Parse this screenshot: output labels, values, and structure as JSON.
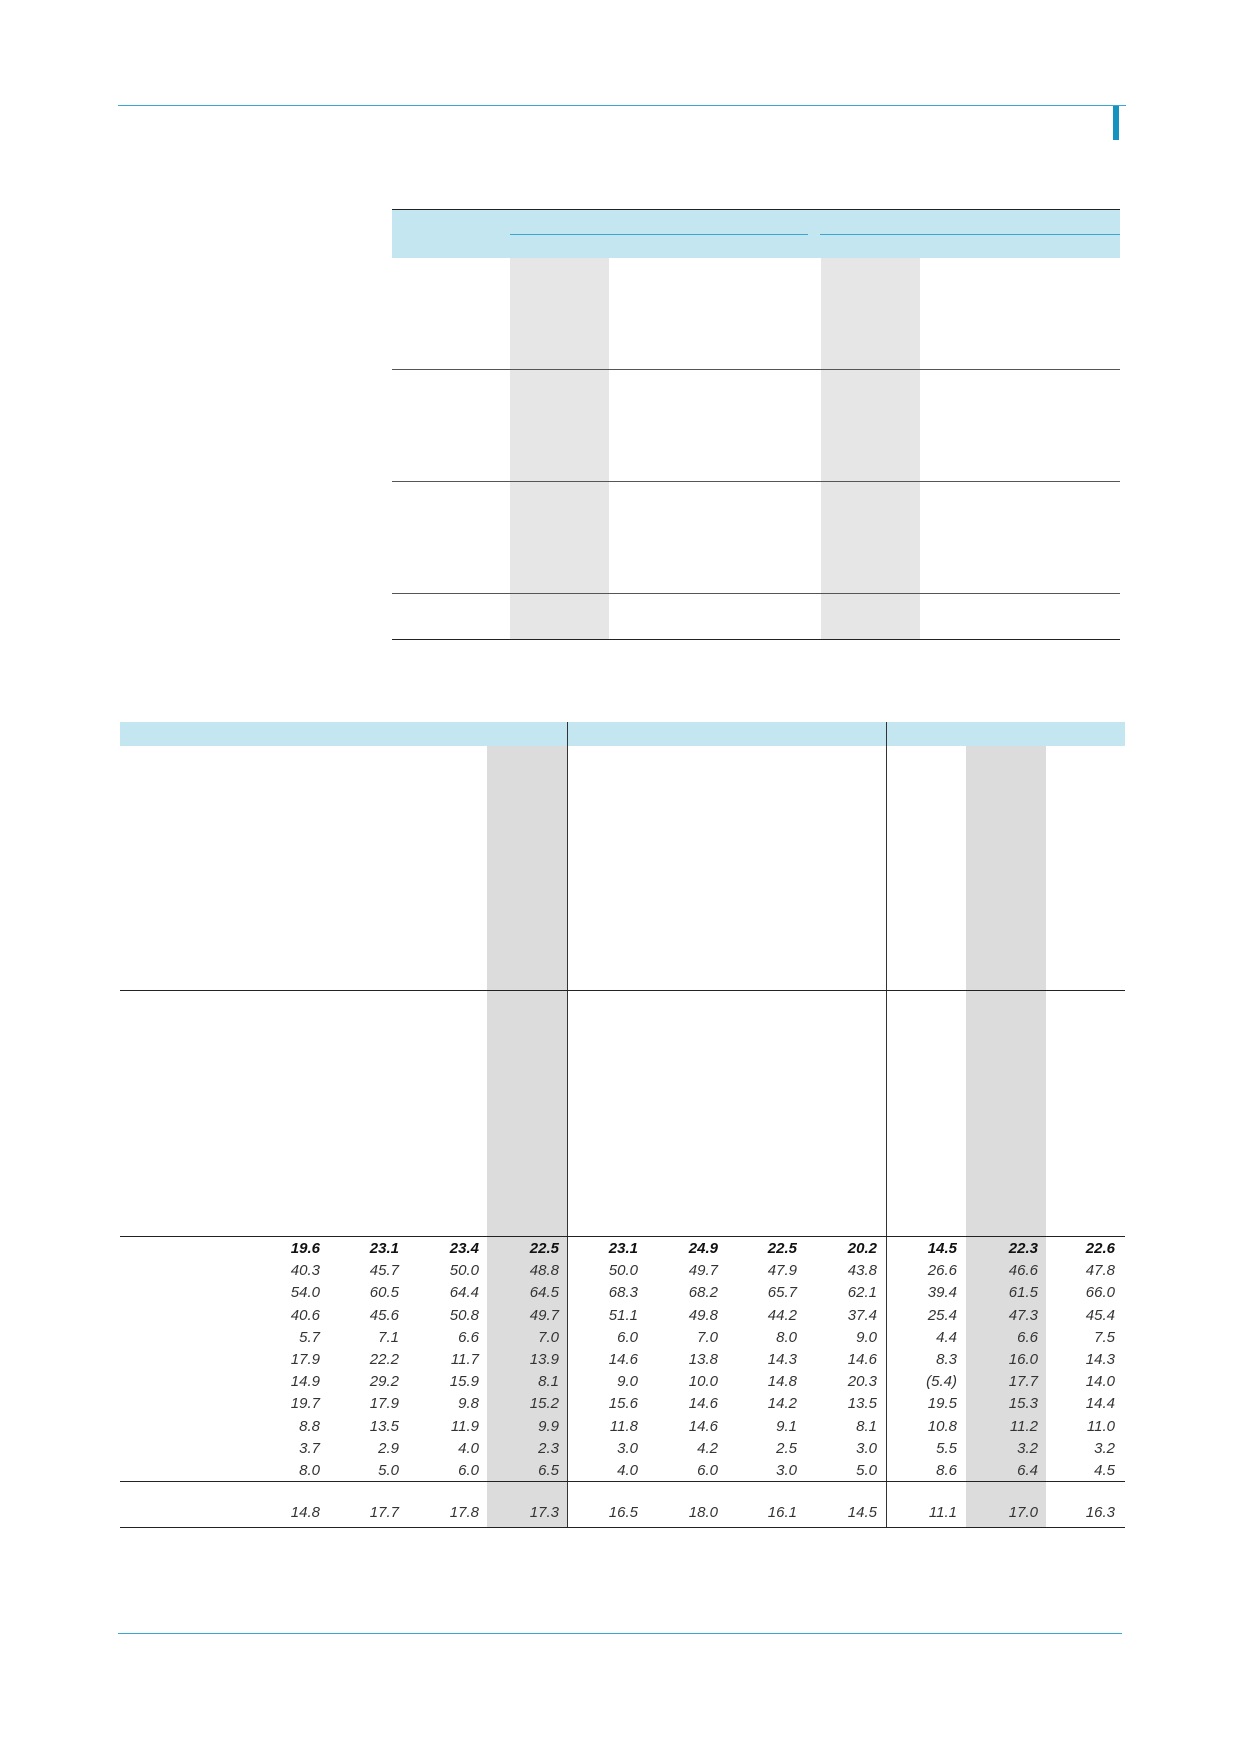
{
  "table": {
    "rows": [
      {
        "bold": true,
        "values": [
          "19.6",
          "23.1",
          "23.4",
          "22.5",
          "23.1",
          "24.9",
          "22.5",
          "20.2",
          "14.5",
          "22.3",
          "22.6"
        ]
      },
      {
        "bold": false,
        "values": [
          "40.3",
          "45.7",
          "50.0",
          "48.8",
          "50.0",
          "49.7",
          "47.9",
          "43.8",
          "26.6",
          "46.6",
          "47.8"
        ]
      },
      {
        "bold": false,
        "values": [
          "54.0",
          "60.5",
          "64.4",
          "64.5",
          "68.3",
          "68.2",
          "65.7",
          "62.1",
          "39.4",
          "61.5",
          "66.0"
        ]
      },
      {
        "bold": false,
        "values": [
          "40.6",
          "45.6",
          "50.8",
          "49.7",
          "51.1",
          "49.8",
          "44.2",
          "37.4",
          "25.4",
          "47.3",
          "45.4"
        ]
      },
      {
        "bold": false,
        "values": [
          "5.7",
          "7.1",
          "6.6",
          "7.0",
          "6.0",
          "7.0",
          "8.0",
          "9.0",
          "4.4",
          "6.6",
          "7.5"
        ]
      },
      {
        "bold": false,
        "values": [
          "17.9",
          "22.2",
          "11.7",
          "13.9",
          "14.6",
          "13.8",
          "14.3",
          "14.6",
          "8.3",
          "16.0",
          "14.3"
        ]
      },
      {
        "bold": false,
        "values": [
          "14.9",
          "29.2",
          "15.9",
          "8.1",
          "9.0",
          "10.0",
          "14.8",
          "20.3",
          "(5.4)",
          "17.7",
          "14.0"
        ]
      },
      {
        "bold": false,
        "values": [
          "19.7",
          "17.9",
          "9.8",
          "15.2",
          "15.6",
          "14.6",
          "14.2",
          "13.5",
          "19.5",
          "15.3",
          "14.4"
        ]
      },
      {
        "bold": false,
        "values": [
          "8.8",
          "13.5",
          "11.9",
          "9.9",
          "11.8",
          "14.6",
          "9.1",
          "8.1",
          "10.8",
          "11.2",
          "11.0"
        ]
      },
      {
        "bold": false,
        "values": [
          "3.7",
          "2.9",
          "4.0",
          "2.3",
          "3.0",
          "4.2",
          "2.5",
          "3.0",
          "5.5",
          "3.2",
          "3.2"
        ]
      },
      {
        "bold": false,
        "values": [
          "8.0",
          "5.0",
          "6.0",
          "6.5",
          "4.0",
          "6.0",
          "3.0",
          "5.0",
          "8.6",
          "6.4",
          "4.5"
        ]
      }
    ],
    "summary": [
      "14.8",
      "17.7",
      "17.8",
      "17.3",
      "16.5",
      "18.0",
      "16.1",
      "14.5",
      "11.1",
      "17.0",
      "16.3"
    ]
  }
}
